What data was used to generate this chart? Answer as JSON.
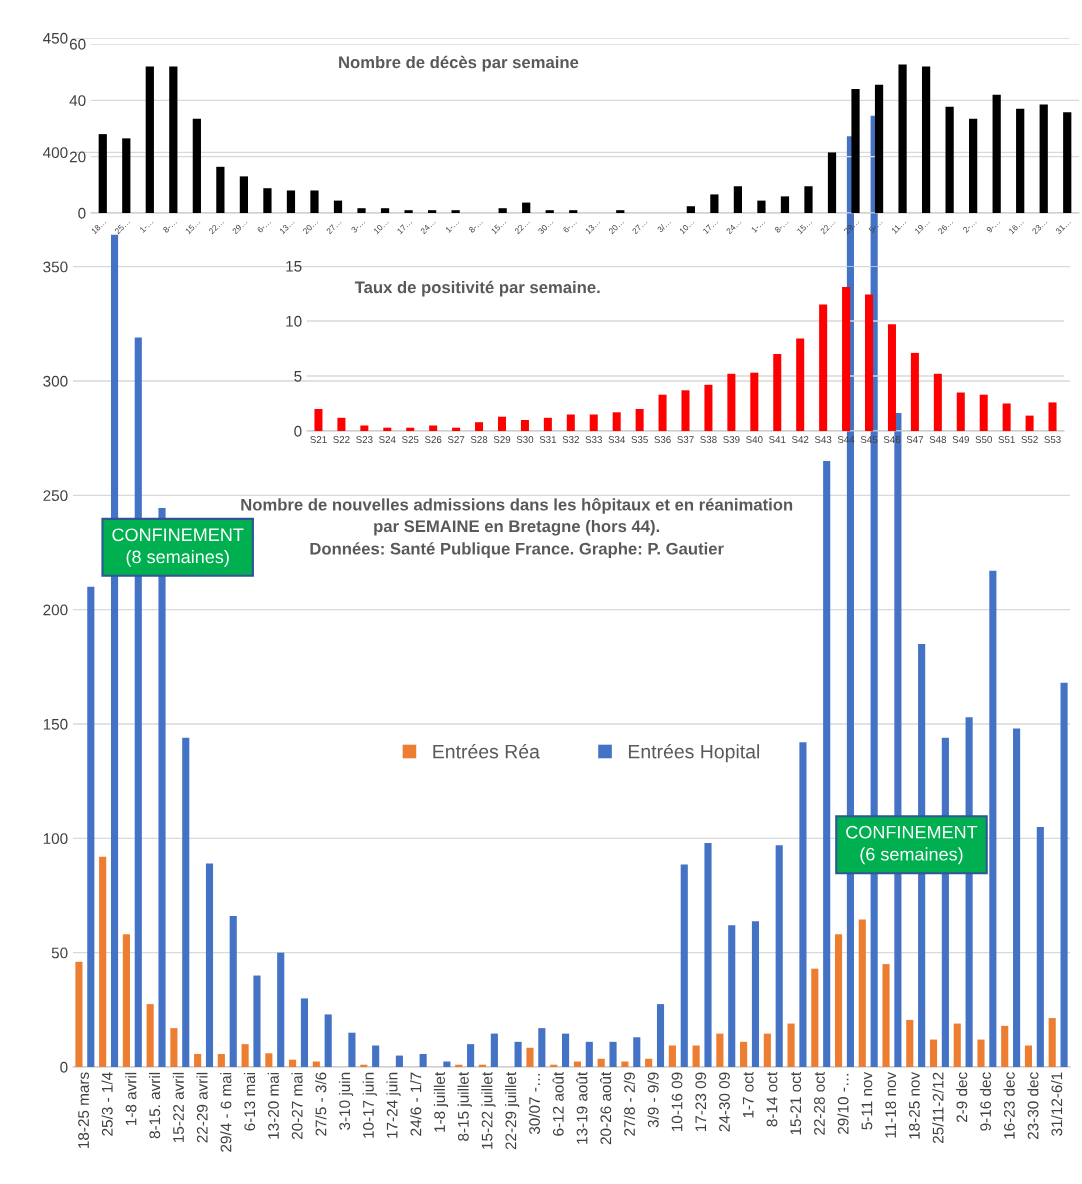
{
  "chart_data": [
    {
      "type": "bar",
      "title": "Nombre de décès par semaine",
      "categories": [
        "18…",
        "25…",
        "1-…",
        "8-…",
        "15…",
        "22…",
        "29…",
        "6-…",
        "13…",
        "20…",
        "27…",
        "3-…",
        "10…",
        "17…",
        "24…",
        "1-…",
        "8-…",
        "15…",
        "22…",
        "30…",
        "6-…",
        "13…",
        "20…",
        "27…",
        "3/…",
        "10…",
        "17…",
        "24…",
        "1-…",
        "8-…",
        "15…",
        "22…",
        "29…",
        "5-…",
        "11…",
        "19…",
        "26…",
        "2-…",
        "9-…",
        "16…",
        "23…",
        "31…"
      ],
      "values": [
        28,
        26.5,
        52,
        52,
        33.5,
        16.4,
        13,
        8.8,
        8,
        8,
        4.4,
        1.7,
        1.7,
        1,
        1,
        1,
        0,
        1.7,
        3.7,
        1,
        1,
        0,
        1,
        0,
        0,
        2.4,
        6.6,
        9.5,
        4.4,
        5.9,
        9.5,
        21.5,
        44,
        45.5,
        52.7,
        52,
        37.7,
        33.5,
        42,
        37,
        38.5,
        35.8
      ],
      "color": "#000000",
      "ylim": [
        0,
        60
      ],
      "yticks": [
        0,
        20,
        40,
        60
      ],
      "grid": "y"
    },
    {
      "type": "bar",
      "title": "Taux de positivité par semaine.",
      "categories": [
        "S21",
        "S22",
        "S23",
        "S24",
        "S25",
        "S26",
        "S27",
        "S28",
        "S29",
        "S30",
        "S31",
        "S32",
        "S33",
        "S34",
        "S35",
        "S36",
        "S37",
        "S38",
        "S39",
        "S40",
        "S41",
        "S42",
        "S43",
        "S44",
        "S45",
        "S46",
        "S47",
        "S48",
        "S49",
        "S50",
        "S51",
        "S52",
        "S53"
      ],
      "values": [
        2.0,
        1.2,
        0.5,
        0.3,
        0.3,
        0.5,
        0.3,
        0.8,
        1.3,
        1.0,
        1.2,
        1.5,
        1.5,
        1.7,
        2.0,
        3.3,
        3.7,
        4.2,
        5.2,
        5.3,
        7.0,
        8.4,
        11.5,
        13.1,
        12.4,
        9.7,
        7.1,
        5.2,
        3.5,
        3.3,
        2.5,
        1.4,
        2.6
      ],
      "color": "#ff0000",
      "ylim": [
        0,
        15
      ],
      "yticks": [
        0,
        5,
        10,
        15
      ],
      "grid": "y"
    },
    {
      "type": "bar",
      "title": "Nombre de nouvelles admissions dans les hôpitaux et en réanimation\npar SEMAINE en Bretagne (hors 44).",
      "subtitle": "Données: Santé Publique France. Graphe: P. Gautier",
      "categories": [
        "18-25 mars",
        "25/3 - 1/4",
        "1-8 avril",
        "8-15. avril",
        "15-22 avril",
        "22-29 avril",
        "29/4 - 6 mai",
        "6-13 mai",
        "13-20 mai",
        "20-27 mai",
        "27/5 - 3/6",
        "3-10 juin",
        "10-17 juin",
        "17-24 juin",
        "24/6 - 1/7",
        "1-8 juillet",
        "8-15 juillet",
        "15-22 juillet",
        "22-29 juillet",
        "30/07 -…",
        "6-12 août",
        "13-19 août",
        "20-26 août",
        "27/8 - 2/9",
        "3/9 - 9/9",
        "10-16 09",
        "17-23 09",
        "24-30 09",
        "1-7 oct",
        "8-14 oct",
        "15-21 oct",
        "22-28 oct",
        "29/10 -…",
        "5-11 nov",
        "11-18 nov",
        "18-25 nov",
        "25/11-2/12",
        "2-9 dec",
        "9-16 dec",
        "16-23 dec",
        "23-30 dec",
        "31/12-6/1"
      ],
      "series": [
        {
          "name": "Entrées Réa",
          "color": "#ed7d31",
          "values": [
            46,
            92,
            58,
            27.5,
            17,
            5.7,
            5.7,
            10,
            6,
            3.2,
            2.4,
            0,
            1,
            0,
            0,
            0,
            1,
            1,
            0,
            8.4,
            1,
            2.4,
            3.6,
            2.4,
            3.6,
            9.4,
            9.4,
            14.6,
            11,
            14.6,
            19,
            43,
            58,
            64.5,
            45,
            20.6,
            12,
            19,
            12,
            18,
            9.4,
            21.4
          ]
        },
        {
          "name": "Entrées Hopital",
          "color": "#4472c4",
          "values": [
            210,
            364,
            319,
            244.5,
            144,
            89,
            66,
            40,
            50,
            30,
            23,
            15,
            9.4,
            5,
            5.7,
            2.4,
            10,
            14.6,
            11,
            17,
            14.6,
            11,
            11,
            13,
            27.5,
            88.6,
            98,
            62,
            63.7,
            97,
            142,
            265,
            407,
            416,
            286,
            185,
            144,
            153,
            217,
            148,
            105,
            168
          ]
        }
      ],
      "ylim": [
        0,
        450
      ],
      "yticks": [
        0,
        50,
        100,
        150,
        200,
        250,
        300,
        350,
        400,
        450
      ],
      "grid": "y",
      "legend": "center",
      "annotations": [
        "CONFINEMENT\n(8 semaines)",
        "CONFINEMENT\n(6 semaines)"
      ]
    }
  ]
}
